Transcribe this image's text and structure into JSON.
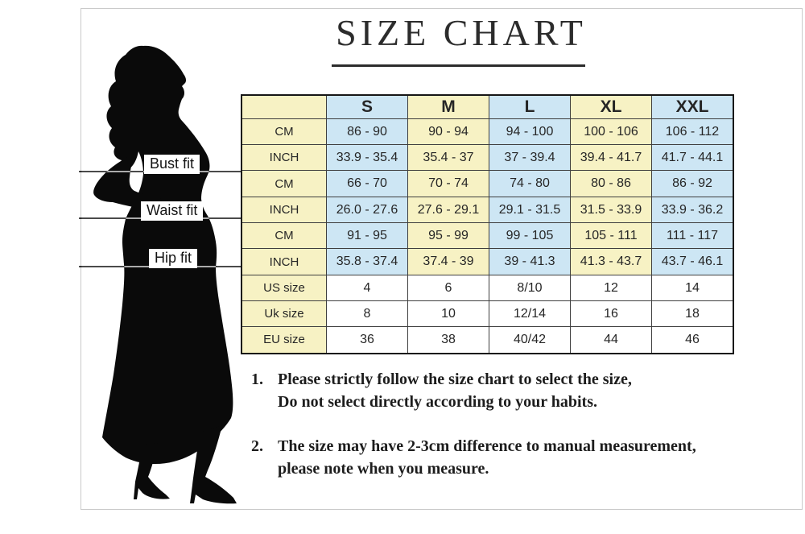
{
  "title": "SIZE CHART",
  "colors": {
    "yellow": "#f7f2c4",
    "blue": "#cde6f4",
    "white": "#ffffff",
    "table_border": "#3f3f3f",
    "outer_border": "#161616",
    "frame": "#cacaca",
    "silhouette": "#0a0a0a",
    "text": "#262626"
  },
  "figure_labels": [
    {
      "label": "Bust fit"
    },
    {
      "label": "Waist fit"
    },
    {
      "label": "Hip fit"
    }
  ],
  "chart_data": {
    "type": "table",
    "title": "SIZE CHART",
    "columns": [
      "",
      "S",
      "M",
      "L",
      "XL",
      "XXL"
    ],
    "column_fills": [
      "yellow",
      "blue",
      "yellow",
      "blue",
      "yellow",
      "blue"
    ],
    "rows": [
      {
        "group": "Bust fit",
        "label": "CM",
        "kind": "measure",
        "values": [
          "86 - 90",
          "90 - 94",
          "94 - 100",
          "100 - 106",
          "106 - 112"
        ]
      },
      {
        "group": "Bust fit",
        "label": "INCH",
        "kind": "measure",
        "values": [
          "33.9 - 35.4",
          "35.4 - 37",
          "37 - 39.4",
          "39.4 - 41.7",
          "41.7 - 44.1"
        ]
      },
      {
        "group": "Waist fit",
        "label": "CM",
        "kind": "measure",
        "values": [
          "66 - 70",
          "70 - 74",
          "74 - 80",
          "80 - 86",
          "86 - 92"
        ]
      },
      {
        "group": "Waist fit",
        "label": "INCH",
        "kind": "measure",
        "values": [
          "26.0 - 27.6",
          "27.6 - 29.1",
          "29.1 - 31.5",
          "31.5 - 33.9",
          "33.9 - 36.2"
        ]
      },
      {
        "group": "Hip fit",
        "label": "CM",
        "kind": "measure",
        "values": [
          "91 - 95",
          "95 - 99",
          "99 - 105",
          "105 - 111",
          "111 - 117"
        ]
      },
      {
        "group": "Hip fit",
        "label": "INCH",
        "kind": "measure",
        "values": [
          "35.8 - 37.4",
          "37.4 - 39",
          "39 - 41.3",
          "41.3 - 43.7",
          "43.7 - 46.1"
        ]
      },
      {
        "group": "",
        "label": "US size",
        "kind": "size",
        "values": [
          "4",
          "6",
          "8/10",
          "12",
          "14"
        ]
      },
      {
        "group": "",
        "label": "Uk size",
        "kind": "size",
        "values": [
          "8",
          "10",
          "12/14",
          "16",
          "18"
        ]
      },
      {
        "group": "",
        "label": "EU size",
        "kind": "size",
        "values": [
          "36",
          "38",
          "40/42",
          "44",
          "46"
        ]
      }
    ]
  },
  "notes": [
    {
      "number": "1.",
      "lines": [
        "Please strictly follow the size chart to select the size,",
        "Do not select directly according to your habits."
      ]
    },
    {
      "number": "2.",
      "lines": [
        "The size may have 2-3cm difference  to manual measurement,",
        "please note when you measure."
      ]
    }
  ]
}
